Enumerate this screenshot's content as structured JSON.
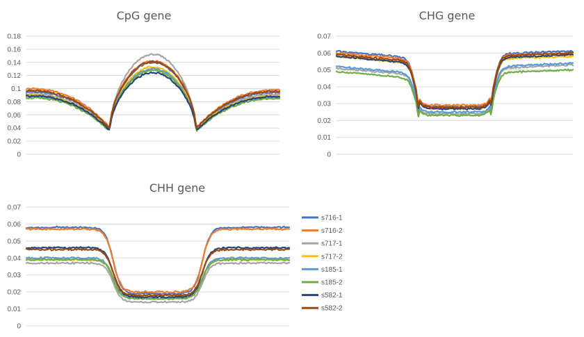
{
  "chart_data": [
    {
      "type": "line",
      "title": "CpG gene",
      "ylim": [
        0,
        0.18
      ],
      "yticks": [
        "0",
        "0.02",
        "0.04",
        "0.06",
        "0.08",
        "0.1",
        "0.12",
        "0.14",
        "0.16",
        "0.18"
      ],
      "x_points": 200,
      "grid": true,
      "series": [
        {
          "name": "s716-1",
          "color": "#4472c4",
          "flank_start": 0.095,
          "valley": 0.038,
          "body_peak": 0.14,
          "flank_end": 0.094
        },
        {
          "name": "s716-2",
          "color": "#ed7d31",
          "flank_start": 0.1,
          "valley": 0.04,
          "body_peak": 0.142,
          "flank_end": 0.098
        },
        {
          "name": "s717-1",
          "color": "#a5a5a5",
          "flank_start": 0.092,
          "valley": 0.037,
          "body_peak": 0.152,
          "flank_end": 0.091
        },
        {
          "name": "s717-2",
          "color": "#ffc000",
          "flank_start": 0.09,
          "valley": 0.037,
          "body_peak": 0.133,
          "flank_end": 0.089
        },
        {
          "name": "s185-1",
          "color": "#5b9bd5",
          "flank_start": 0.088,
          "valley": 0.036,
          "body_peak": 0.13,
          "flank_end": 0.087
        },
        {
          "name": "s185-2",
          "color": "#70ad47",
          "flank_start": 0.086,
          "valley": 0.035,
          "body_peak": 0.128,
          "flank_end": 0.085
        },
        {
          "name": "s582-1",
          "color": "#264478",
          "flank_start": 0.089,
          "valley": 0.036,
          "body_peak": 0.124,
          "flank_end": 0.088
        },
        {
          "name": "s582-2",
          "color": "#9e480e",
          "flank_start": 0.097,
          "valley": 0.039,
          "body_peak": 0.141,
          "flank_end": 0.096
        }
      ]
    },
    {
      "type": "line",
      "title": "CHG gene",
      "ylim": [
        0,
        0.07
      ],
      "yticks": [
        "0",
        "0.01",
        "0.02",
        "0.03",
        "0.04",
        "0.05",
        "0.06",
        "0.07"
      ],
      "x_points": 200,
      "grid": true,
      "series": [
        {
          "name": "s716-1",
          "color": "#4472c4",
          "flank_start": 0.061,
          "flank_mid": 0.057,
          "body": 0.028,
          "flank_end": 0.061
        },
        {
          "name": "s716-2",
          "color": "#ed7d31",
          "flank_start": 0.06,
          "flank_mid": 0.056,
          "body": 0.029,
          "flank_end": 0.06
        },
        {
          "name": "s717-1",
          "color": "#a5a5a5",
          "flank_start": 0.051,
          "flank_mid": 0.047,
          "body": 0.024,
          "flank_end": 0.053
        },
        {
          "name": "s717-2",
          "color": "#ffc000",
          "flank_start": 0.058,
          "flank_mid": 0.054,
          "body": 0.027,
          "flank_end": 0.058
        },
        {
          "name": "s185-1",
          "color": "#5b9bd5",
          "flank_start": 0.052,
          "flank_mid": 0.048,
          "body": 0.025,
          "flank_end": 0.054
        },
        {
          "name": "s185-2",
          "color": "#70ad47",
          "flank_start": 0.049,
          "flank_mid": 0.045,
          "body": 0.023,
          "flank_end": 0.05
        },
        {
          "name": "s582-1",
          "color": "#264478",
          "flank_start": 0.058,
          "flank_mid": 0.054,
          "body": 0.027,
          "flank_end": 0.059
        },
        {
          "name": "s582-2",
          "color": "#9e480e",
          "flank_start": 0.059,
          "flank_mid": 0.055,
          "body": 0.028,
          "flank_end": 0.06
        }
      ]
    },
    {
      "type": "line",
      "title": "CHH gene",
      "ylim": [
        0,
        0.07
      ],
      "yticks": [
        "0",
        "0.01",
        "0.02",
        "0.03",
        "0.04",
        "0.05",
        "0.06",
        "0.07"
      ],
      "x_points": 200,
      "grid": true,
      "legend": "right",
      "series": [
        {
          "name": "s716-1",
          "color": "#4472c4",
          "flank": 0.058,
          "body": 0.019
        },
        {
          "name": "s716-2",
          "color": "#ed7d31",
          "flank": 0.057,
          "body": 0.02
        },
        {
          "name": "s717-1",
          "color": "#a5a5a5",
          "flank": 0.037,
          "body": 0.014
        },
        {
          "name": "s717-2",
          "color": "#ffc000",
          "flank": 0.039,
          "body": 0.018
        },
        {
          "name": "s185-1",
          "color": "#5b9bd5",
          "flank": 0.04,
          "body": 0.016
        },
        {
          "name": "s185-2",
          "color": "#70ad47",
          "flank": 0.039,
          "body": 0.016
        },
        {
          "name": "s582-1",
          "color": "#264478",
          "flank": 0.046,
          "body": 0.017
        },
        {
          "name": "s582-2",
          "color": "#9e480e",
          "flank": 0.045,
          "body": 0.018
        }
      ]
    }
  ]
}
